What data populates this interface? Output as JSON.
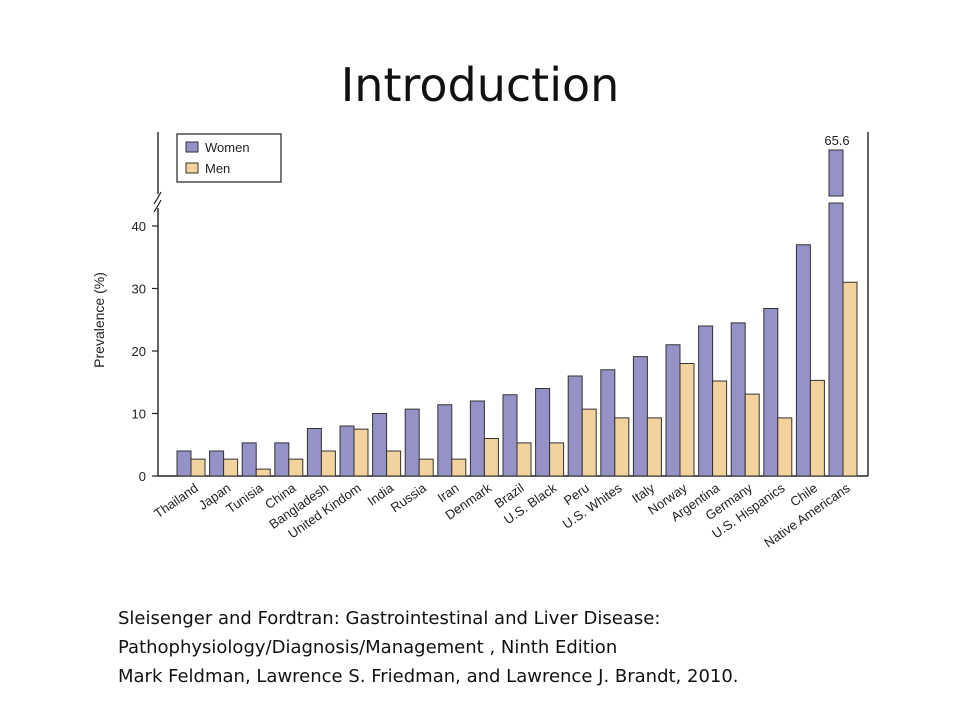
{
  "slide": {
    "title": "Introduction",
    "citation": [
      "Sleisenger and Fordtran: Gastrointestinal and Liver Disease:",
      "Pathophysiology/Diagnosis/Management , Ninth Edition",
      "Mark Feldman, Lawrence S. Friedman, and Lawrence J. Brandt, 2010."
    ]
  },
  "chart_data": {
    "type": "bar",
    "title": "",
    "xlabel": "",
    "ylabel": "Prevalence (%)",
    "ylim": [
      0,
      40
    ],
    "yticks": [
      0,
      10,
      20,
      30,
      40
    ],
    "axis_break": true,
    "legend_position": "top-left",
    "categories": [
      "Thailand",
      "Japan",
      "Tunisia",
      "China",
      "Bangladesh",
      "United Kindom",
      "India",
      "Russia",
      "Iran",
      "Denmark",
      "Brazil",
      "U.S. Black",
      "Peru",
      "U.S. Whites",
      "Italy",
      "Norway",
      "Argentina",
      "Germany",
      "U.S. Hispanics",
      "Chile",
      "Native Americans"
    ],
    "series": [
      {
        "name": "Women",
        "color": "#9492c6",
        "values": [
          4,
          4,
          5.3,
          5.3,
          7.6,
          8,
          10,
          10.7,
          11.4,
          12,
          13,
          14,
          16,
          17,
          19.1,
          21,
          24,
          24.5,
          26.8,
          37,
          65.6
        ]
      },
      {
        "name": "Men",
        "color": "#f2d39e",
        "values": [
          2.7,
          2.7,
          1.1,
          2.7,
          4,
          7.5,
          4,
          2.7,
          2.7,
          6,
          5.3,
          5.3,
          10.7,
          9.3,
          9.3,
          18,
          15.2,
          13.1,
          9.3,
          15.3,
          31
        ]
      }
    ],
    "annotations": [
      "65.6"
    ]
  }
}
